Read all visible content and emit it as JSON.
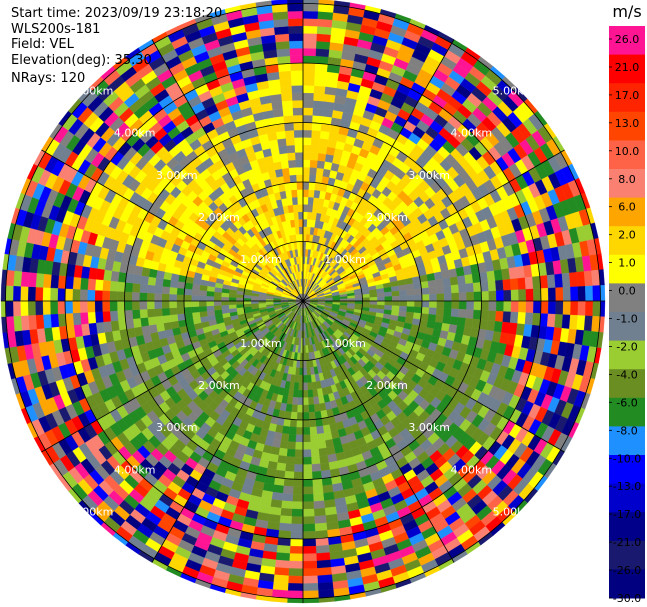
{
  "header": {
    "start_time": "Start time: 2023/09/19 23:18:20",
    "instrument": "WLS200s-181",
    "field": "Field: VEL",
    "elevation": "Elevation(deg): 35.30",
    "nrays": "NRays: 120"
  },
  "chart_data": {
    "type": "heatmap",
    "projection": "polar",
    "field": "VEL",
    "nrays": 120,
    "range_rings_km": [
      1.0,
      2.0,
      3.0,
      4.0,
      5.0
    ],
    "ring_labels": [
      "1.00km",
      "2.00km",
      "3.00km",
      "4.00km",
      "5.00km"
    ],
    "colorbar": {
      "unit": "m/s",
      "ticks": [
        "26.0",
        "21.0",
        "17.0",
        "13.0",
        "10.0",
        "8.0",
        "6.0",
        "2.0",
        "1.0",
        "0.0",
        "-1.0",
        "-2.0",
        "-4.0",
        "-6.0",
        "-8.0",
        "-10.0",
        "-13.0",
        "-17.0",
        "-21.0",
        "-26.0",
        "-30.0"
      ],
      "colors": [
        "#ff1493",
        "#ff0000",
        "#ff2400",
        "#ff4500",
        "#ff6347",
        "#fa8072",
        "#ffa500",
        "#ffd700",
        "#ffff00",
        "#808080",
        "#708090",
        "#9acd32",
        "#6b8e23",
        "#228b22",
        "#1e90ff",
        "#0000ff",
        "#0000cd",
        "#00008b",
        "#191970",
        "#000080"
      ]
    }
  }
}
